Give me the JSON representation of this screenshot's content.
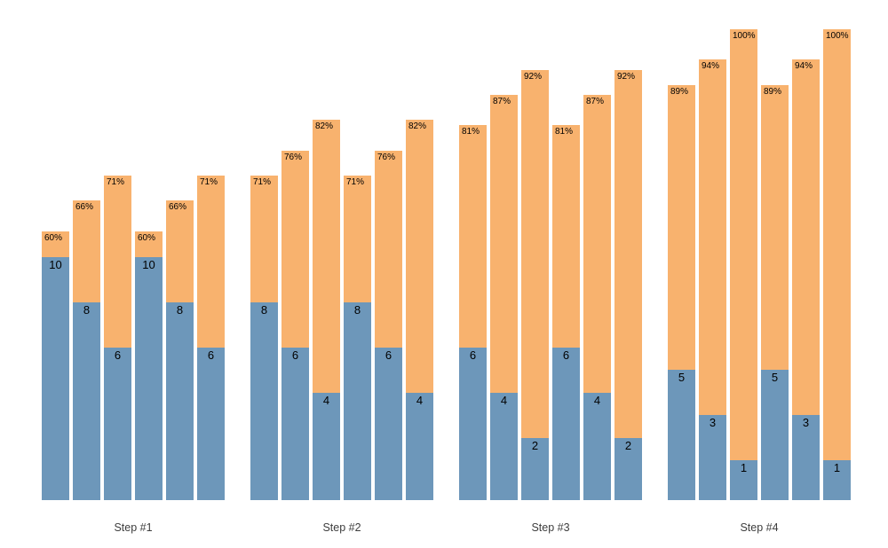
{
  "chart_data": {
    "type": "bar",
    "variant": "stacked",
    "title": "",
    "xlabel": "",
    "ylabel": "",
    "legend": "none",
    "axes": "none",
    "background": "#ffffff",
    "colors": {
      "bottom_segment": "#6d97ba",
      "top_segment": "#f8b26e",
      "bar_label_text": "#000000",
      "group_label_text": "#3d3d3d"
    },
    "groups": [
      {
        "label": "Step #1",
        "bars": [
          {
            "value": 10,
            "value_label": "10",
            "pct": 60,
            "pct_label": "60%"
          },
          {
            "value": 8,
            "value_label": "8",
            "pct": 66,
            "pct_label": "66%"
          },
          {
            "value": 6,
            "value_label": "6",
            "pct": 71,
            "pct_label": "71%"
          },
          {
            "value": 10,
            "value_label": "10",
            "pct": 60,
            "pct_label": "60%"
          },
          {
            "value": 8,
            "value_label": "8",
            "pct": 66,
            "pct_label": "66%"
          },
          {
            "value": 6,
            "value_label": "6",
            "pct": 71,
            "pct_label": "71%"
          }
        ]
      },
      {
        "label": "Step #2",
        "bars": [
          {
            "value": 8,
            "value_label": "8",
            "pct": 71,
            "pct_label": "71%"
          },
          {
            "value": 6,
            "value_label": "6",
            "pct": 76,
            "pct_label": "76%"
          },
          {
            "value": 4,
            "value_label": "4",
            "pct": 82,
            "pct_label": "82%"
          },
          {
            "value": 8,
            "value_label": "8",
            "pct": 71,
            "pct_label": "71%"
          },
          {
            "value": 6,
            "value_label": "6",
            "pct": 76,
            "pct_label": "76%"
          },
          {
            "value": 4,
            "value_label": "4",
            "pct": 82,
            "pct_label": "82%"
          }
        ]
      },
      {
        "label": "Step #3",
        "bars": [
          {
            "value": 6,
            "value_label": "6",
            "pct": 81,
            "pct_label": "81%"
          },
          {
            "value": 4,
            "value_label": "4",
            "pct": 87,
            "pct_label": "87%"
          },
          {
            "value": 2,
            "value_label": "2",
            "pct": 92,
            "pct_label": "92%"
          },
          {
            "value": 6,
            "value_label": "6",
            "pct": 81,
            "pct_label": "81%"
          },
          {
            "value": 4,
            "value_label": "4",
            "pct": 87,
            "pct_label": "87%"
          },
          {
            "value": 2,
            "value_label": "2",
            "pct": 92,
            "pct_label": "92%"
          }
        ]
      },
      {
        "label": "Step #4",
        "bars": [
          {
            "value": 5,
            "value_label": "5",
            "pct": 89,
            "pct_label": "89%"
          },
          {
            "value": 3,
            "value_label": "3",
            "pct": 94,
            "pct_label": "94%"
          },
          {
            "value": 1,
            "value_label": "1",
            "pct": 100,
            "pct_label": "100%"
          },
          {
            "value": 5,
            "value_label": "5",
            "pct": 89,
            "pct_label": "89%"
          },
          {
            "value": 3,
            "value_label": "3",
            "pct": 94,
            "pct_label": "94%"
          },
          {
            "value": 1,
            "value_label": "1",
            "pct": 100,
            "pct_label": "100%"
          }
        ]
      }
    ]
  }
}
